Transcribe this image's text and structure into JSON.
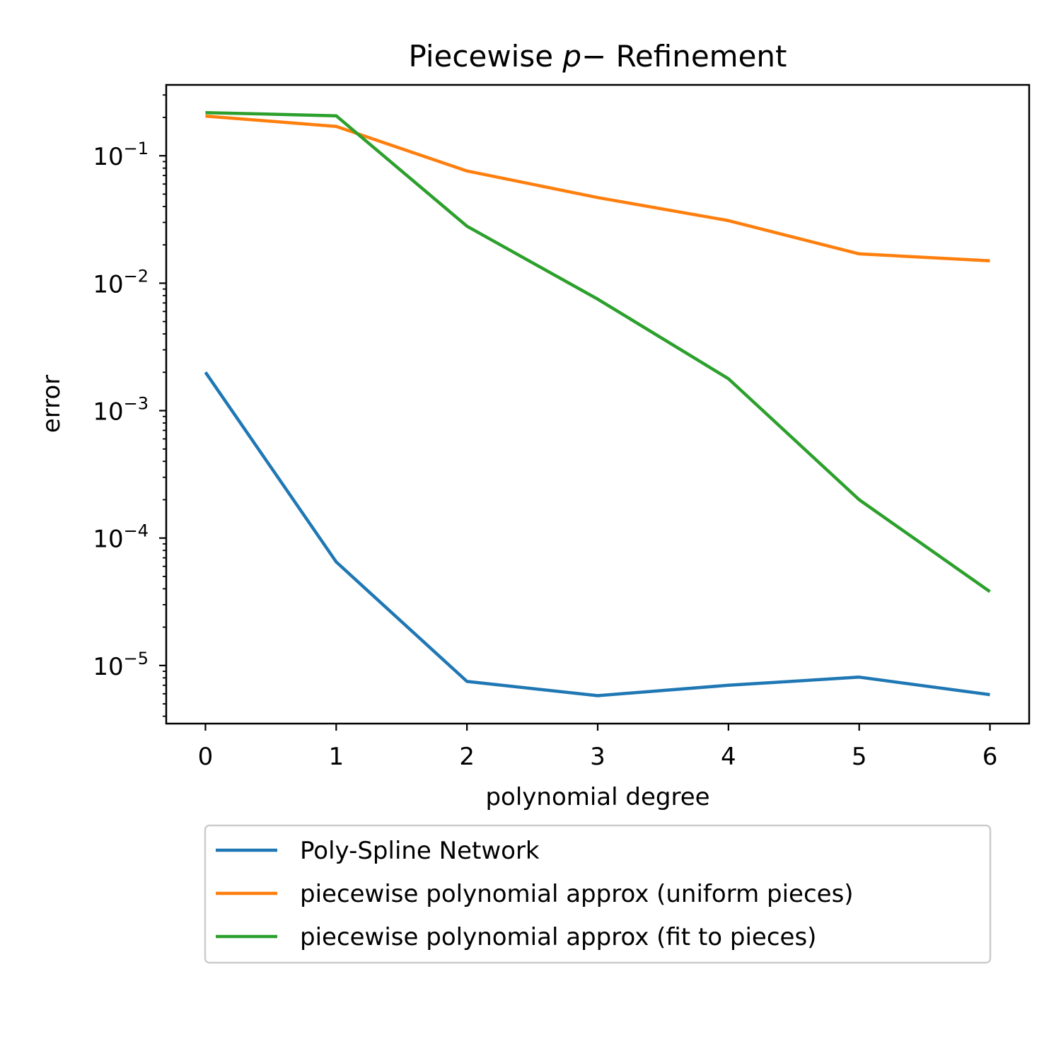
{
  "chart_data": {
    "type": "line",
    "title_main": "Piecewise ",
    "title_var": "p",
    "title_rest": "−  Refinement",
    "xlabel": "polynomial degree",
    "ylabel": "error",
    "yscale": "log",
    "x": [
      0,
      1,
      2,
      3,
      4,
      5,
      6
    ],
    "xticks": [
      "0",
      "1",
      "2",
      "3",
      "4",
      "5",
      "6"
    ],
    "xlim": [
      -0.3,
      6.3
    ],
    "ylim": [
      3.5e-06,
      0.36
    ],
    "yticks": [
      {
        "base": "10",
        "exp": "−1",
        "value": 0.1
      },
      {
        "base": "10",
        "exp": "−2",
        "value": 0.01
      },
      {
        "base": "10",
        "exp": "−3",
        "value": 0.001
      },
      {
        "base": "10",
        "exp": "−4",
        "value": 0.0001
      },
      {
        "base": "10",
        "exp": "−5",
        "value": 1e-05
      }
    ],
    "grid": false,
    "legend_position": "below plot",
    "series": [
      {
        "name": "Poly-Spline Network",
        "color": "#1f77b4",
        "values": [
          0.002,
          6.5e-05,
          7.5e-06,
          5.8e-06,
          7e-06,
          8.1e-06,
          5.9e-06
        ]
      },
      {
        "name": "piecewise polynomial approx (uniform pieces)",
        "color": "#ff7f0e",
        "values": [
          0.205,
          0.17,
          0.076,
          0.047,
          0.031,
          0.017,
          0.015
        ]
      },
      {
        "name": "piecewise polynomial approx (fit to pieces)",
        "color": "#2ca02c",
        "values": [
          0.218,
          0.206,
          0.028,
          0.0075,
          0.00178,
          0.0002,
          3.8e-05
        ]
      }
    ]
  }
}
